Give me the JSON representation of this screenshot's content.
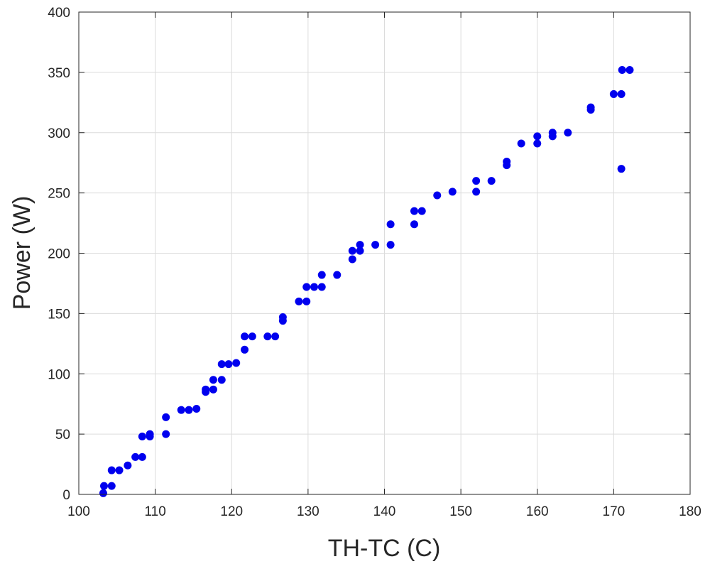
{
  "chart_data": {
    "type": "scatter",
    "title": "",
    "xlabel": "TH-TC (C)",
    "ylabel": "Power (W)",
    "xlim": [
      100,
      180
    ],
    "ylim": [
      0,
      400
    ],
    "xticks": [
      "100",
      "110",
      "120",
      "130",
      "140",
      "150",
      "160",
      "170",
      "180"
    ],
    "yticks": [
      "0",
      "50",
      "100",
      "150",
      "200",
      "250",
      "300",
      "350",
      "400"
    ],
    "grid": true,
    "marker_color": "#0000ee",
    "points": [
      [
        103.2,
        1
      ],
      [
        103.3,
        7
      ],
      [
        104.3,
        7
      ],
      [
        104.3,
        20
      ],
      [
        105.3,
        20
      ],
      [
        106.4,
        24
      ],
      [
        107.4,
        31
      ],
      [
        108.3,
        31
      ],
      [
        108.3,
        48
      ],
      [
        109.3,
        48
      ],
      [
        109.3,
        50
      ],
      [
        111.4,
        50
      ],
      [
        111.4,
        64
      ],
      [
        113.4,
        70
      ],
      [
        114.4,
        70
      ],
      [
        115.4,
        71
      ],
      [
        116.6,
        85
      ],
      [
        116.6,
        87
      ],
      [
        117.6,
        87
      ],
      [
        117.6,
        95
      ],
      [
        118.7,
        95
      ],
      [
        118.7,
        108
      ],
      [
        119.6,
        108
      ],
      [
        120.6,
        109
      ],
      [
        121.7,
        120
      ],
      [
        121.7,
        131
      ],
      [
        122.7,
        131
      ],
      [
        124.7,
        131
      ],
      [
        125.7,
        131
      ],
      [
        126.7,
        144
      ],
      [
        126.7,
        147
      ],
      [
        128.8,
        160
      ],
      [
        129.8,
        160
      ],
      [
        129.8,
        172
      ],
      [
        130.8,
        172
      ],
      [
        131.8,
        172
      ],
      [
        131.8,
        182
      ],
      [
        133.8,
        182
      ],
      [
        135.8,
        195
      ],
      [
        135.8,
        202
      ],
      [
        136.8,
        202
      ],
      [
        136.8,
        207
      ],
      [
        138.8,
        207
      ],
      [
        140.8,
        207
      ],
      [
        140.8,
        224
      ],
      [
        143.9,
        224
      ],
      [
        143.9,
        235
      ],
      [
        144.9,
        235
      ],
      [
        146.9,
        248
      ],
      [
        148.9,
        251
      ],
      [
        152.0,
        251
      ],
      [
        152.0,
        260
      ],
      [
        154.0,
        260
      ],
      [
        156.0,
        273
      ],
      [
        156.0,
        276
      ],
      [
        157.9,
        291
      ],
      [
        160.0,
        291
      ],
      [
        160.0,
        297
      ],
      [
        162.0,
        297
      ],
      [
        162.0,
        300
      ],
      [
        164.0,
        300
      ],
      [
        167.0,
        319
      ],
      [
        167.0,
        321
      ],
      [
        170.0,
        332
      ],
      [
        171.0,
        332
      ],
      [
        171.0,
        270
      ],
      [
        171.1,
        352
      ],
      [
        172.1,
        352
      ]
    ]
  }
}
